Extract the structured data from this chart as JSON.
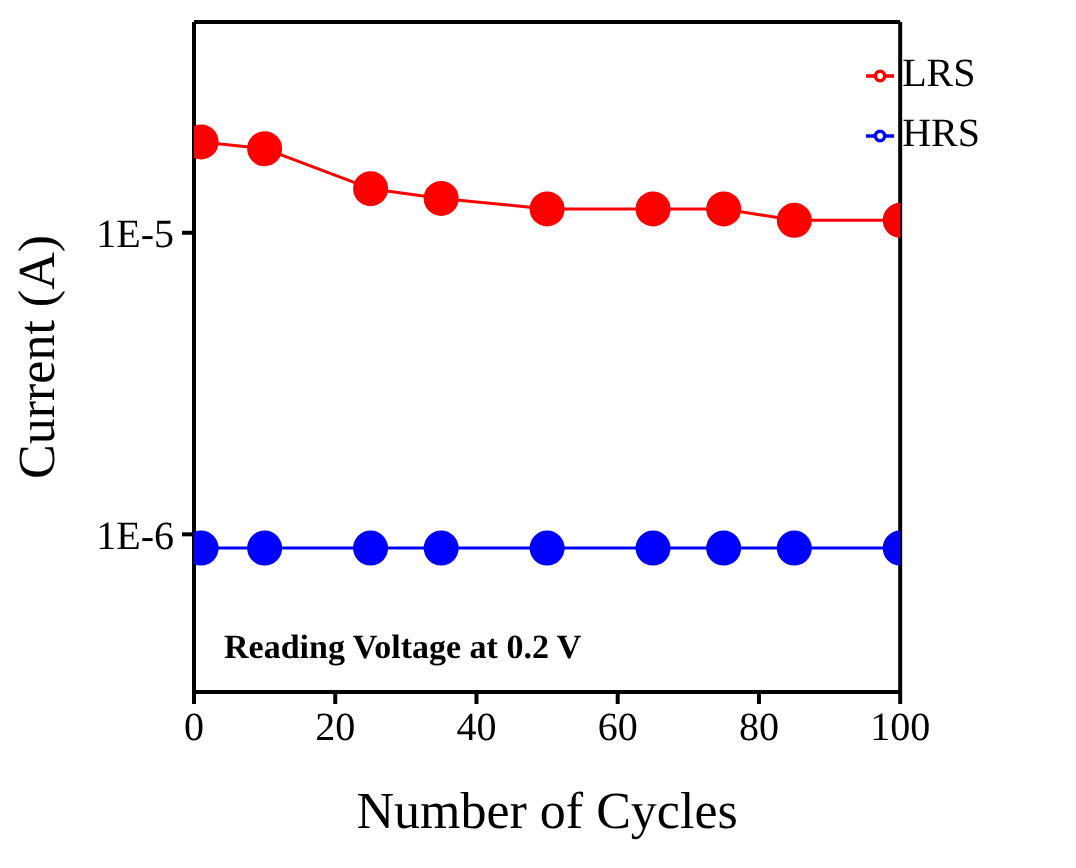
{
  "chart_data": {
    "type": "line",
    "xlabel": "Number of Cycles",
    "ylabel": "Current (A)",
    "x": [
      1,
      10,
      25,
      35,
      50,
      65,
      75,
      85,
      100
    ],
    "series": [
      {
        "name": "LRS",
        "color": "#ff0000",
        "values": [
          2e-05,
          1.9e-05,
          1.4e-05,
          1.3e-05,
          1.2e-05,
          1.2e-05,
          1.2e-05,
          1.1e-05,
          1.1e-05
        ]
      },
      {
        "name": "HRS",
        "color": "#0000ff",
        "values": [
          9e-07,
          9e-07,
          9e-07,
          9e-07,
          9e-07,
          9e-07,
          9e-07,
          9e-07,
          9e-07
        ]
      }
    ],
    "xlim": [
      0,
      100
    ],
    "xticks": [
      0,
      20,
      40,
      60,
      80,
      100
    ],
    "ylim": [
      3e-07,
      5e-05
    ],
    "yticks": [
      {
        "value": 1e-06,
        "label": "1E-6"
      },
      {
        "value": 1e-05,
        "label": "1E-5"
      }
    ],
    "log": "y",
    "marker": "circle",
    "line_style": "solid",
    "legend": "top right",
    "grid": false,
    "annotations": [
      "Reading Voltage at 0.2 V"
    ]
  }
}
